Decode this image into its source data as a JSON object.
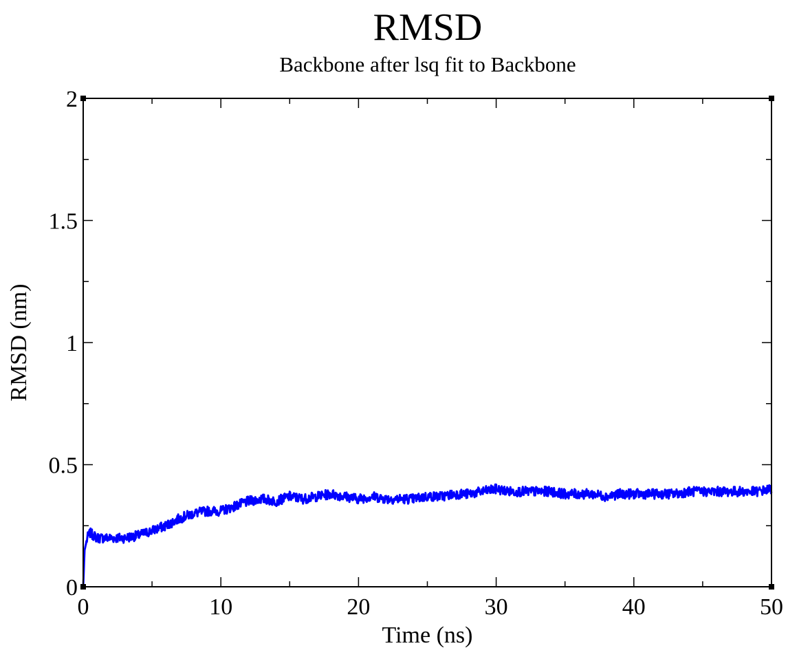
{
  "chart_data": {
    "type": "line",
    "title": "RMSD",
    "subtitle": "Backbone after lsq fit to Backbone",
    "xlabel": "Time (ns)",
    "ylabel": "RMSD (nm)",
    "xlim": [
      0,
      50
    ],
    "ylim": [
      0,
      2
    ],
    "xticks": [
      "0",
      "10",
      "20",
      "30",
      "40",
      "50"
    ],
    "yticks": [
      "0",
      "0.5",
      "1",
      "1.5",
      "2"
    ],
    "grid": false,
    "legend": "none",
    "series": [
      {
        "color": "#0000ff",
        "x": [
          0,
          0.1,
          0.3,
          0.5,
          1,
          2,
          3,
          4,
          5,
          6,
          7,
          8,
          9,
          10,
          11,
          12,
          13,
          14,
          15,
          16,
          17,
          18,
          19,
          20,
          21,
          22,
          23,
          24,
          25,
          26,
          27,
          28,
          29,
          30,
          31,
          32,
          33,
          34,
          35,
          36,
          37,
          38,
          39,
          40,
          41,
          42,
          43,
          44,
          45,
          46,
          47,
          48,
          49,
          50
        ],
        "y": [
          0.0,
          0.15,
          0.2,
          0.22,
          0.2,
          0.2,
          0.2,
          0.21,
          0.23,
          0.25,
          0.28,
          0.3,
          0.31,
          0.31,
          0.33,
          0.35,
          0.36,
          0.35,
          0.37,
          0.36,
          0.37,
          0.38,
          0.37,
          0.36,
          0.37,
          0.36,
          0.36,
          0.36,
          0.37,
          0.37,
          0.38,
          0.38,
          0.39,
          0.4,
          0.39,
          0.39,
          0.39,
          0.39,
          0.38,
          0.38,
          0.38,
          0.37,
          0.38,
          0.38,
          0.38,
          0.38,
          0.38,
          0.39,
          0.39,
          0.39,
          0.39,
          0.39,
          0.39,
          0.4
        ]
      }
    ]
  }
}
